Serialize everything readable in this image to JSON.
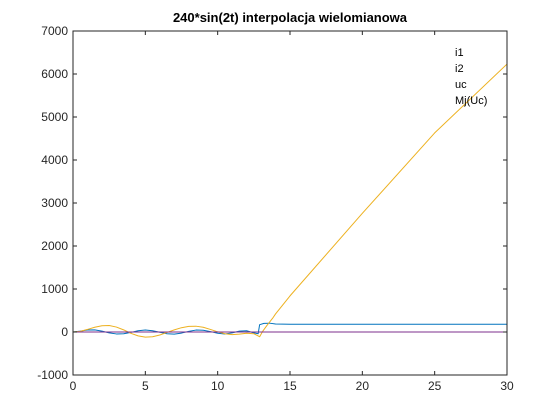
{
  "chart_data": {
    "type": "line",
    "title": "240*sin(2t) interpolacja wielomianowa",
    "xlabel": "",
    "ylabel": "",
    "xlim": [
      0,
      30
    ],
    "ylim": [
      -1000,
      7000
    ],
    "xticks": [
      0,
      5,
      10,
      15,
      20,
      25,
      30
    ],
    "yticks": [
      -1000,
      0,
      1000,
      2000,
      3000,
      4000,
      5000,
      6000,
      7000
    ],
    "grid": false,
    "legend_position": "top-right",
    "legend": [
      "i1",
      "i2",
      "uc",
      "Mj(Uc)"
    ],
    "series": [
      {
        "name": "i1",
        "color": "#0072BD",
        "x": [
          0,
          0.5,
          1,
          1.5,
          2,
          2.5,
          3,
          3.5,
          4,
          4.5,
          5,
          5.5,
          6,
          6.5,
          7,
          7.5,
          8,
          8.5,
          9,
          9.5,
          10,
          10.5,
          11,
          11.5,
          12,
          12.5,
          12.8,
          12.9,
          13.2,
          13.6,
          14,
          15,
          20,
          25,
          30
        ],
        "y": [
          0,
          20,
          45,
          50,
          20,
          -20,
          -45,
          -40,
          -10,
          30,
          45,
          30,
          -5,
          -40,
          -50,
          -25,
          15,
          45,
          40,
          10,
          -30,
          -45,
          -20,
          20,
          30,
          -20,
          -40,
          170,
          200,
          205,
          185,
          180,
          180,
          180,
          180
        ]
      },
      {
        "name": "i2",
        "color": "#D95319",
        "x": [
          0,
          5,
          10,
          12.8,
          13,
          15,
          20,
          25,
          30
        ],
        "y": [
          0,
          0,
          0,
          0,
          0,
          0,
          0,
          0,
          0
        ]
      },
      {
        "name": "uc",
        "color": "#EDB120",
        "x": [
          0,
          0.5,
          1,
          1.5,
          2,
          2.5,
          3,
          3.5,
          4,
          4.5,
          5,
          5.5,
          6,
          6.5,
          7,
          7.5,
          8,
          8.5,
          9,
          9.5,
          10,
          10.5,
          11,
          11.5,
          12,
          12.5,
          12.9,
          13.1,
          13.4,
          13.8,
          14,
          15,
          20,
          25,
          30
        ],
        "y": [
          0,
          15,
          60,
          110,
          145,
          150,
          115,
          50,
          -30,
          -90,
          -120,
          -110,
          -70,
          -10,
          50,
          100,
          130,
          135,
          110,
          60,
          5,
          -40,
          -60,
          -50,
          -30,
          -40,
          -110,
          10,
          150,
          320,
          420,
          840,
          2760,
          4630,
          6230
        ]
      },
      {
        "name": "Mj(Uc)",
        "color": "#7E2F8E",
        "x": [
          0,
          5,
          10,
          15,
          20,
          25,
          30
        ],
        "y": [
          0,
          0,
          0,
          0,
          0,
          0,
          0
        ]
      }
    ]
  }
}
